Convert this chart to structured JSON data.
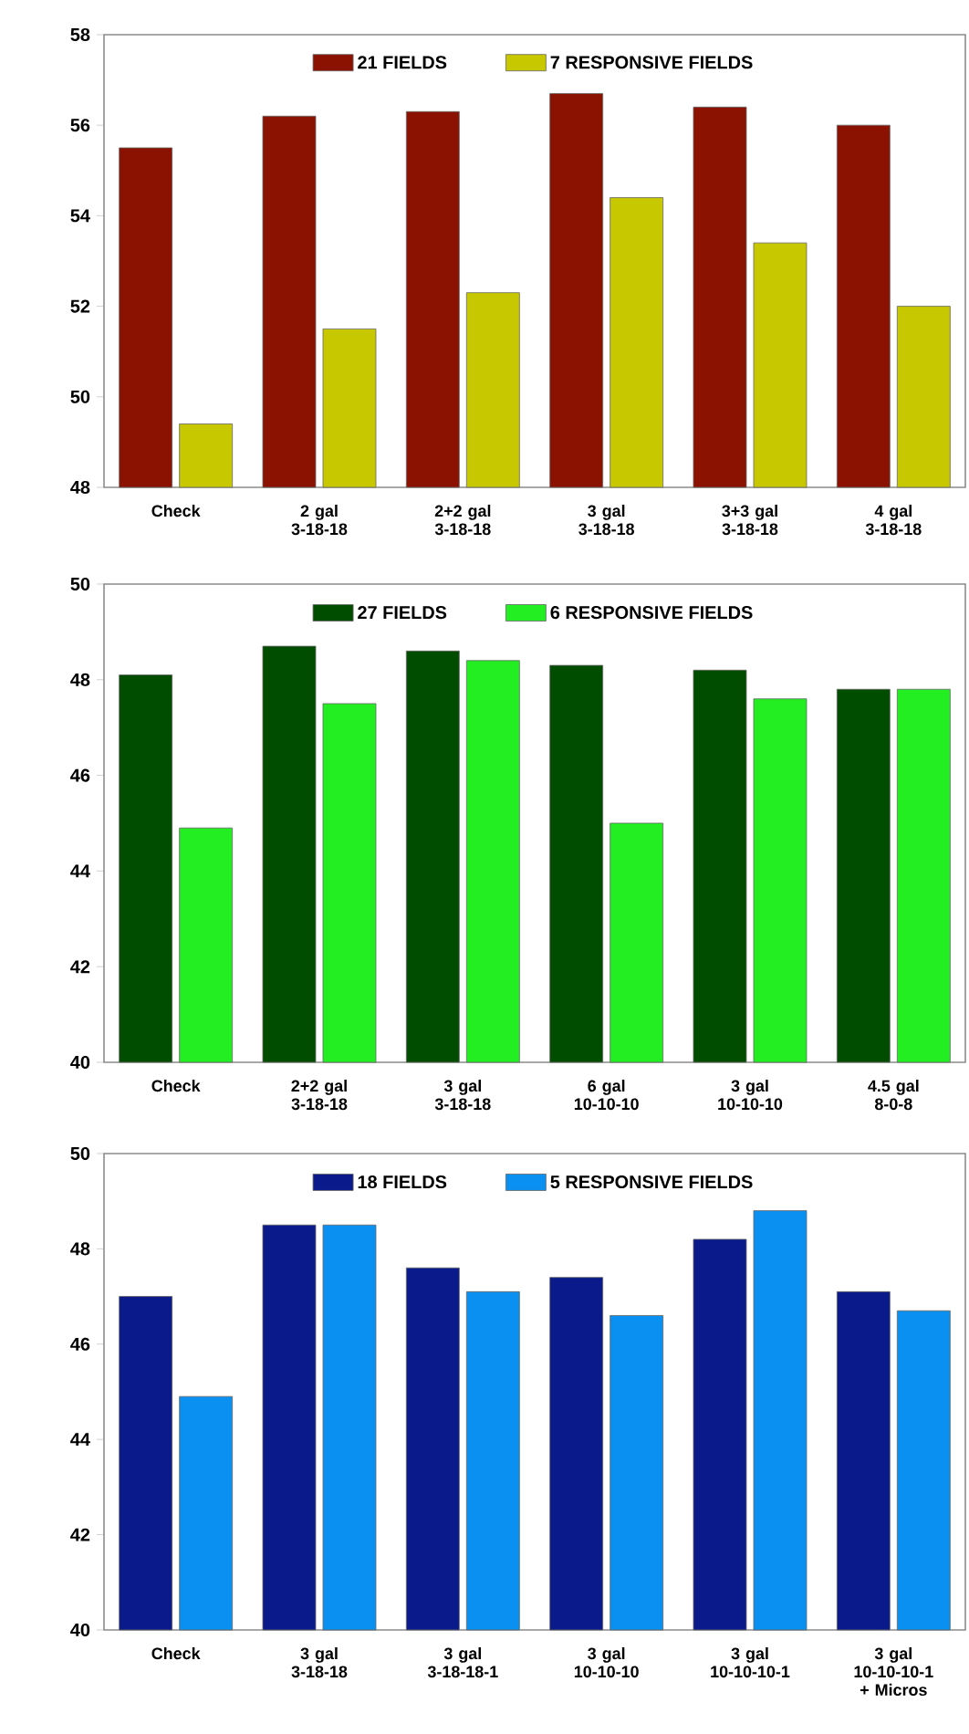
{
  "chart_data": [
    {
      "type": "bar",
      "categories": [
        "Check",
        "2 gal 3-18-18",
        "2+2 gal 3-18-18",
        "3 gal 3-18-18",
        "3+3 gal 3-18-18",
        "4 gal 3-18-18"
      ],
      "series": [
        {
          "name": "21 FIELDS",
          "color": "#8b1200",
          "values": [
            55.5,
            56.2,
            56.3,
            56.7,
            56.4,
            56.0
          ]
        },
        {
          "name": "7 RESPONSIVE FIELDS",
          "color": "#c8c800",
          "values": [
            49.4,
            51.5,
            52.3,
            54.4,
            53.4,
            52.0
          ]
        }
      ],
      "ylim": [
        48,
        58
      ],
      "yticks": [
        48,
        50,
        52,
        54,
        56,
        58
      ],
      "legend": "top"
    },
    {
      "type": "bar",
      "categories": [
        "Check",
        "2+2 gal 3-18-18",
        "3 gal 3-18-18",
        "6 gal 10-10-10",
        "3 gal 10-10-10",
        "4.5 gal 8-0-8"
      ],
      "series": [
        {
          "name": "27 FIELDS",
          "color": "#004d00",
          "values": [
            48.1,
            48.7,
            48.6,
            48.3,
            48.2,
            47.8
          ]
        },
        {
          "name": "6 RESPONSIVE FIELDS",
          "color": "#22ee22",
          "values": [
            44.9,
            47.5,
            48.4,
            45.0,
            47.6,
            47.8
          ]
        }
      ],
      "ylim": [
        40,
        50
      ],
      "yticks": [
        40,
        42,
        44,
        46,
        48,
        50
      ],
      "legend": "top"
    },
    {
      "type": "bar",
      "categories": [
        "Check",
        "3 gal 3-18-18",
        "3 gal 3-18-18-1",
        "3 gal 10-10-10",
        "3 gal 10-10-10-1",
        "3 gal 10-10-10-1 + Micros"
      ],
      "series": [
        {
          "name": "18 FIELDS",
          "color": "#0a1a8a",
          "values": [
            47.0,
            48.5,
            47.6,
            47.4,
            48.2,
            47.1
          ]
        },
        {
          "name": "5 RESPONSIVE FIELDS",
          "color": "#0a90f0",
          "values": [
            44.9,
            48.5,
            47.1,
            46.6,
            48.8,
            46.7
          ]
        }
      ],
      "ylim": [
        40,
        50
      ],
      "yticks": [
        40,
        42,
        44,
        46,
        48,
        50
      ],
      "legend": "top"
    }
  ]
}
